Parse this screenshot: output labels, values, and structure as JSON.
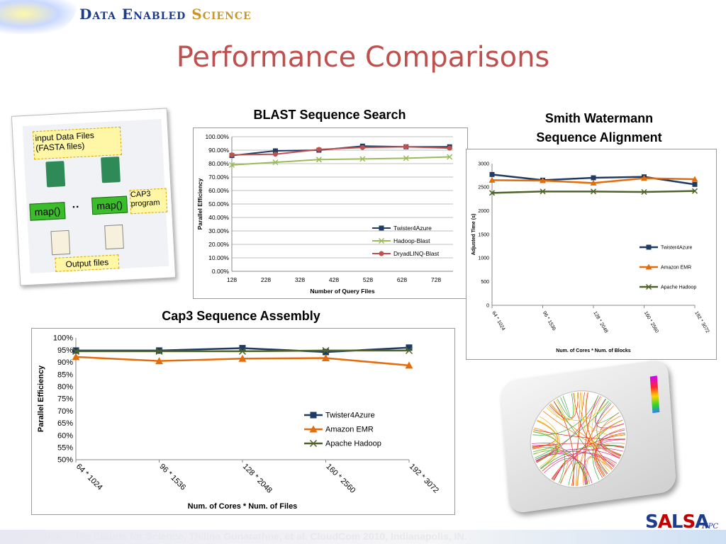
{
  "header": {
    "brand_part1": "Data Enabled",
    "brand_part2": "Science"
  },
  "slide": {
    "title": "Performance Comparisons"
  },
  "figure_left": {
    "label_top": "input Data Files (FASTA files)",
    "map_label": "map()",
    "dots": "··",
    "cap3_label": "CAP3 program",
    "output_label": "Output files"
  },
  "chart_data": [
    {
      "id": "blast",
      "type": "line",
      "title": "BLAST Sequence Search",
      "xlabel": "Number of Query Files",
      "ylabel": "Parallel Efficiency",
      "xticks": [
        "128",
        "228",
        "328",
        "428",
        "528",
        "628",
        "728"
      ],
      "xlim": [
        128,
        778
      ],
      "ylim": [
        0,
        100
      ],
      "yticks": [
        "0.00%",
        "10.00%",
        "20.00%",
        "30.00%",
        "40.00%",
        "50.00%",
        "60.00%",
        "70.00%",
        "80.00%",
        "90.00%",
        "100.00%"
      ],
      "legend_position": "lower-right",
      "series": [
        {
          "name": "Twister4Azure",
          "color": "#1f3b63",
          "marker": "square",
          "x": [
            128,
            256,
            384,
            512,
            640,
            768
          ],
          "y": [
            86,
            89.5,
            90,
            93,
            92.5,
            92.5
          ]
        },
        {
          "name": "Hadoop-Blast",
          "color": "#9bbb59",
          "marker": "x",
          "x": [
            128,
            256,
            384,
            512,
            640,
            768
          ],
          "y": [
            79,
            81,
            83,
            83.5,
            84,
            85
          ]
        },
        {
          "name": "DryadLINQ-Blast",
          "color": "#c0504d",
          "marker": "circle",
          "x": [
            128,
            256,
            384,
            512,
            640,
            768
          ],
          "y": [
            86.5,
            87,
            90.5,
            92,
            92.5,
            91.5
          ]
        }
      ]
    },
    {
      "id": "smith",
      "type": "line",
      "title": "Smith Watermann Sequence Alignment",
      "title_lines": [
        "Smith Watermann",
        "Sequence Alignment"
      ],
      "xlabel": "Num. of Cores * Num. of Blocks",
      "ylabel": "Adjusted Time (s)",
      "categories": [
        "64 * 1024",
        "96 * 1536",
        "128 * 2048",
        "160 * 2560",
        "192 * 3072"
      ],
      "ylim": [
        0,
        3000
      ],
      "yticks": [
        "0",
        "500",
        "1000",
        "1500",
        "2000",
        "2500",
        "3000"
      ],
      "legend_position": "lower-right",
      "series": [
        {
          "name": "Twister4Azure",
          "color": "#1f3b63",
          "marker": "square",
          "values": [
            2770,
            2650,
            2700,
            2720,
            2560
          ]
        },
        {
          "name": "Amazon EMR",
          "color": "#e46c0a",
          "marker": "triangle",
          "values": [
            2650,
            2640,
            2590,
            2690,
            2670
          ]
        },
        {
          "name": "Apache Hadoop",
          "color": "#4f6228",
          "marker": "x",
          "values": [
            2380,
            2410,
            2410,
            2400,
            2420
          ]
        }
      ]
    },
    {
      "id": "cap3",
      "type": "line",
      "title": "Cap3 Sequence Assembly",
      "xlabel": "Num. of Cores * Num. of Files",
      "ylabel": "Parallel Efficiency",
      "categories": [
        "64 * 1024",
        "96 * 1536",
        "128 * 2048",
        "160 * 2560",
        "192 * 3072"
      ],
      "ylim": [
        50,
        100
      ],
      "yticks": [
        "50%",
        "55%",
        "60%",
        "65%",
        "70%",
        "75%",
        "80%",
        "85%",
        "90%",
        "95%",
        "100%"
      ],
      "legend_position": "lower-right",
      "series": [
        {
          "name": "Twister4Azure",
          "color": "#1f3b63",
          "marker": "square",
          "values": [
            94.8,
            94.8,
            95.8,
            94.2,
            96
          ]
        },
        {
          "name": "Amazon EMR",
          "color": "#e46c0a",
          "marker": "triangle",
          "values": [
            92.2,
            90.5,
            91.5,
            91.7,
            88.7
          ]
        },
        {
          "name": "Apache Hadoop",
          "color": "#4f6228",
          "marker": "x",
          "values": [
            94.5,
            94.5,
            94.5,
            94.8,
            94.8
          ]
        }
      ]
    }
  ],
  "footer": {
    "citation": "MapReduce in the Clouds for Science, Thilina Gunarathne, et al. CloudCom 2010, Indianapolis, IN."
  },
  "logo": {
    "salsa_letters": [
      "S",
      "A",
      "L",
      "S",
      "A"
    ],
    "salsa_colors": [
      "#1e3c8c",
      "#c00000",
      "#1e3c8c",
      "#c00000",
      "#1e3c8c"
    ],
    "hpc": "HPC"
  }
}
